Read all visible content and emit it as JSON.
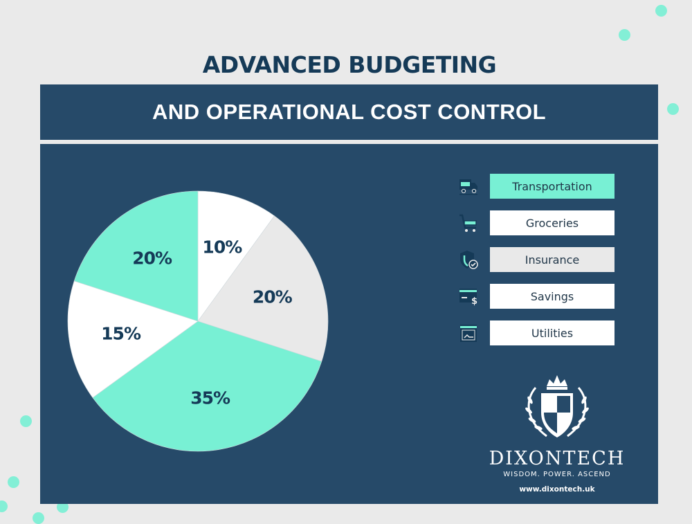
{
  "header": {
    "title": "ADVANCED BUDGETING",
    "subtitle": "AND OPERATIONAL COST CONTROL"
  },
  "colors": {
    "background": "#eaeaea",
    "panel": "#264a69",
    "navy_text": "#153a57",
    "teal": "#78f0d4",
    "white": "#ffffff",
    "light_gray": "#e9e9e9"
  },
  "chart_data": {
    "type": "pie",
    "title": "ADVANCED BUDGETING AND OPERATIONAL COST CONTROL",
    "categories": [
      "Transportation",
      "Groceries",
      "Insurance",
      "Savings",
      "Utilities"
    ],
    "values": [
      20,
      10,
      20,
      35,
      15
    ],
    "slices_clockwise_from_top": [
      {
        "label": "10%",
        "value": 10,
        "color": "#ffffff"
      },
      {
        "label": "20%",
        "value": 20,
        "color": "#e9e9e9"
      },
      {
        "label": "35%",
        "value": 35,
        "color": "#78f0d4"
      },
      {
        "label": "15%",
        "value": 15,
        "color": "#ffffff"
      },
      {
        "label": "20%",
        "value": 20,
        "color": "#78f0d4"
      }
    ],
    "legend_position": "right"
  },
  "legend": {
    "items": [
      {
        "label": "Transportation",
        "icon": "truck-icon",
        "bg": "#78f0d4"
      },
      {
        "label": "Groceries",
        "icon": "cart-icon",
        "bg": "#ffffff"
      },
      {
        "label": "Insurance",
        "icon": "shield-check-icon",
        "bg": "#e9e9e9"
      },
      {
        "label": "Savings",
        "icon": "card-dollar-icon",
        "bg": "#ffffff"
      },
      {
        "label": "Utilities",
        "icon": "box-icon",
        "bg": "#ffffff"
      }
    ]
  },
  "logo": {
    "brand": "DIXONTECH",
    "tagline": "WISDOM.  POWER. ASCEND",
    "url": "www.dixontech.uk"
  }
}
